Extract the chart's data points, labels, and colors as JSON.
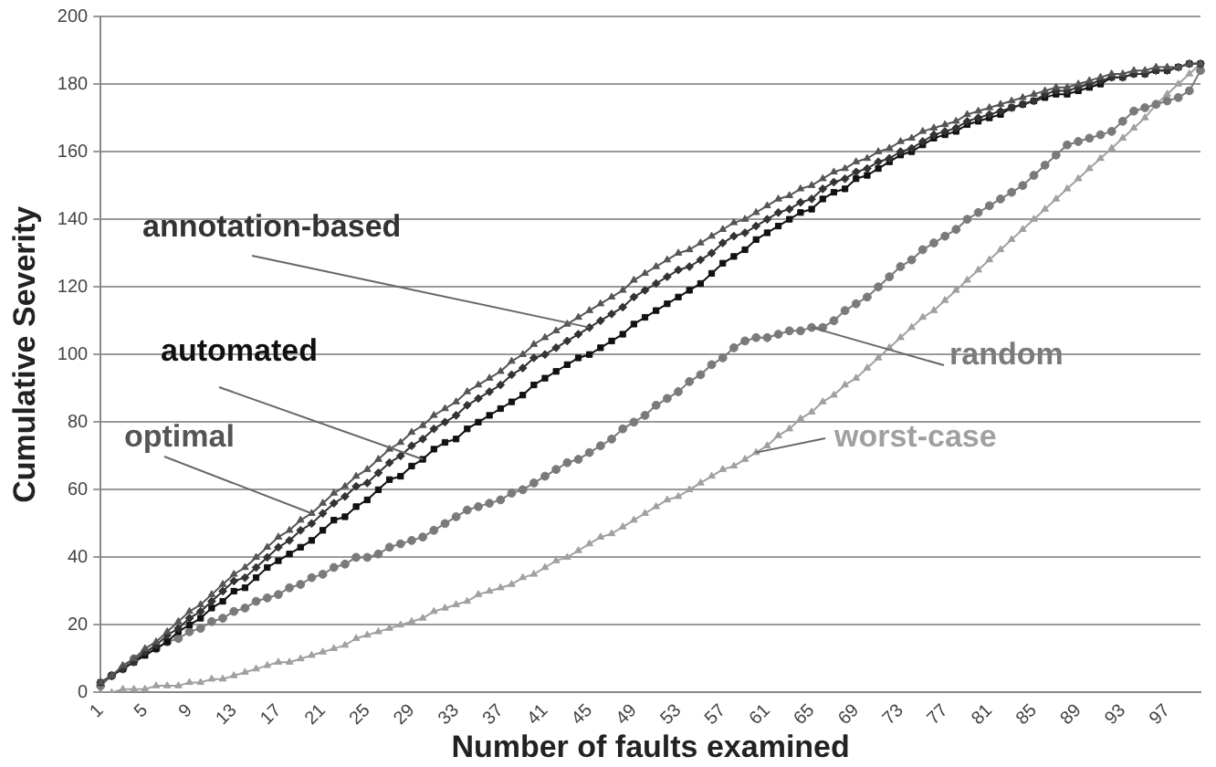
{
  "chart_data": {
    "type": "line",
    "xlabel": "Number of faults examined",
    "ylabel": "Cumulative Severity",
    "categories": [
      "1",
      null,
      null,
      null,
      "5",
      null,
      null,
      null,
      "9",
      null,
      null,
      null,
      "13",
      null,
      null,
      null,
      "17",
      null,
      null,
      null,
      "21",
      null,
      null,
      null,
      "25",
      null,
      null,
      null,
      "29",
      null,
      null,
      null,
      "33",
      null,
      null,
      null,
      "37",
      null,
      null,
      null,
      "41",
      null,
      null,
      null,
      "45",
      null,
      null,
      null,
      "49",
      null,
      null,
      null,
      "53",
      null,
      null,
      null,
      "57",
      null,
      null,
      null,
      "61",
      null,
      null,
      null,
      "65",
      null,
      null,
      null,
      "69",
      null,
      null,
      null,
      "73",
      null,
      null,
      null,
      "77",
      null,
      null,
      null,
      "81",
      null,
      null,
      null,
      "85",
      null,
      null,
      null,
      "89",
      null,
      null,
      null,
      "93",
      null,
      null,
      null,
      "97",
      null,
      null,
      null
    ],
    "ylim": [
      0,
      200
    ],
    "yticks": [
      0,
      20,
      40,
      60,
      80,
      100,
      120,
      140,
      160,
      180,
      200
    ],
    "grid": "y",
    "legend": false,
    "series": [
      {
        "name": "optimal",
        "color": "#555555",
        "marker": "triangle",
        "values": [
          3,
          5,
          8,
          10,
          13,
          15,
          18,
          21,
          24,
          26,
          29,
          32,
          35,
          37,
          40,
          43,
          46,
          48,
          51,
          53,
          56,
          59,
          61,
          64,
          66,
          69,
          72,
          74,
          77,
          79,
          82,
          84,
          86,
          89,
          91,
          93,
          95,
          98,
          100,
          103,
          105,
          107,
          109,
          111,
          113,
          115,
          117,
          119,
          122,
          124,
          126,
          128,
          130,
          131,
          133,
          135,
          137,
          139,
          140,
          142,
          144,
          146,
          147,
          149,
          150,
          152,
          154,
          155,
          157,
          158,
          160,
          161,
          163,
          164,
          166,
          167,
          168,
          169,
          171,
          172,
          173,
          174,
          175,
          176,
          177,
          178,
          179,
          179,
          180,
          181,
          182,
          183,
          183,
          184,
          184,
          185,
          185,
          185,
          186,
          186
        ]
      },
      {
        "name": "annotation-based",
        "color": "#333333",
        "marker": "diamond",
        "values": [
          3,
          5,
          7,
          9,
          12,
          14,
          17,
          19,
          22,
          24,
          27,
          30,
          33,
          34,
          37,
          40,
          43,
          45,
          48,
          50,
          53,
          56,
          58,
          61,
          62,
          65,
          68,
          70,
          73,
          75,
          78,
          80,
          82,
          85,
          87,
          89,
          91,
          94,
          96,
          99,
          100,
          102,
          104,
          106,
          108,
          110,
          112,
          114,
          117,
          119,
          121,
          123,
          125,
          126,
          128,
          130,
          133,
          135,
          136,
          138,
          140,
          142,
          143,
          145,
          146,
          149,
          151,
          152,
          154,
          155,
          157,
          158,
          160,
          161,
          163,
          165,
          166,
          167,
          169,
          170,
          171,
          172,
          173,
          174,
          175,
          177,
          178,
          178,
          179,
          180,
          181,
          182,
          182,
          183,
          183,
          184,
          184,
          185,
          186,
          186
        ]
      },
      {
        "name": "automated",
        "color": "#111111",
        "marker": "square",
        "values": [
          3,
          5,
          7,
          9,
          11,
          13,
          15,
          18,
          20,
          22,
          25,
          27,
          30,
          31,
          34,
          37,
          39,
          41,
          43,
          45,
          48,
          51,
          52,
          55,
          57,
          60,
          63,
          64,
          67,
          69,
          72,
          74,
          75,
          78,
          80,
          82,
          84,
          86,
          88,
          91,
          93,
          95,
          97,
          99,
          100,
          102,
          104,
          106,
          109,
          111,
          113,
          115,
          117,
          119,
          121,
          124,
          127,
          129,
          131,
          134,
          136,
          138,
          140,
          142,
          143,
          146,
          148,
          149,
          152,
          153,
          155,
          157,
          159,
          160,
          162,
          164,
          165,
          166,
          168,
          169,
          170,
          171,
          173,
          174,
          175,
          176,
          177,
          177,
          178,
          179,
          180,
          182,
          182,
          183,
          183,
          184,
          184,
          185,
          186,
          186
        ]
      },
      {
        "name": "random",
        "color": "#7a7a7a",
        "marker": "circle",
        "values": [
          2,
          5,
          7,
          10,
          12,
          13,
          15,
          16,
          18,
          19,
          21,
          22,
          24,
          25,
          27,
          28,
          29,
          31,
          32,
          34,
          35,
          37,
          38,
          40,
          40,
          41,
          43,
          44,
          45,
          46,
          48,
          50,
          52,
          54,
          55,
          56,
          57,
          59,
          60,
          62,
          64,
          66,
          68,
          69,
          71,
          73,
          75,
          78,
          80,
          82,
          85,
          87,
          89,
          92,
          94,
          97,
          99,
          102,
          104,
          105,
          105,
          106,
          107,
          107,
          108,
          108,
          110,
          113,
          115,
          117,
          120,
          123,
          126,
          128,
          131,
          133,
          135,
          137,
          140,
          142,
          144,
          146,
          148,
          150,
          153,
          156,
          159,
          162,
          163,
          164,
          165,
          166,
          169,
          172,
          173,
          174,
          175,
          176,
          178,
          184
        ]
      },
      {
        "name": "worst-case",
        "color": "#a0a0a0",
        "marker": "triangle",
        "values": [
          0,
          0,
          1,
          1,
          1,
          2,
          2,
          2,
          3,
          3,
          4,
          4,
          5,
          6,
          7,
          8,
          9,
          9,
          10,
          11,
          12,
          13,
          14,
          16,
          17,
          18,
          19,
          20,
          21,
          22,
          24,
          25,
          26,
          27,
          29,
          30,
          31,
          32,
          34,
          35,
          37,
          39,
          40,
          42,
          44,
          46,
          47,
          49,
          51,
          53,
          55,
          57,
          58,
          60,
          62,
          64,
          66,
          67,
          69,
          71,
          73,
          76,
          78,
          81,
          83,
          86,
          88,
          91,
          93,
          96,
          99,
          102,
          105,
          108,
          111,
          113,
          116,
          119,
          122,
          125,
          128,
          131,
          134,
          137,
          140,
          143,
          146,
          149,
          152,
          155,
          158,
          161,
          164,
          167,
          170,
          174,
          177,
          180,
          183,
          186
        ]
      }
    ]
  }
}
